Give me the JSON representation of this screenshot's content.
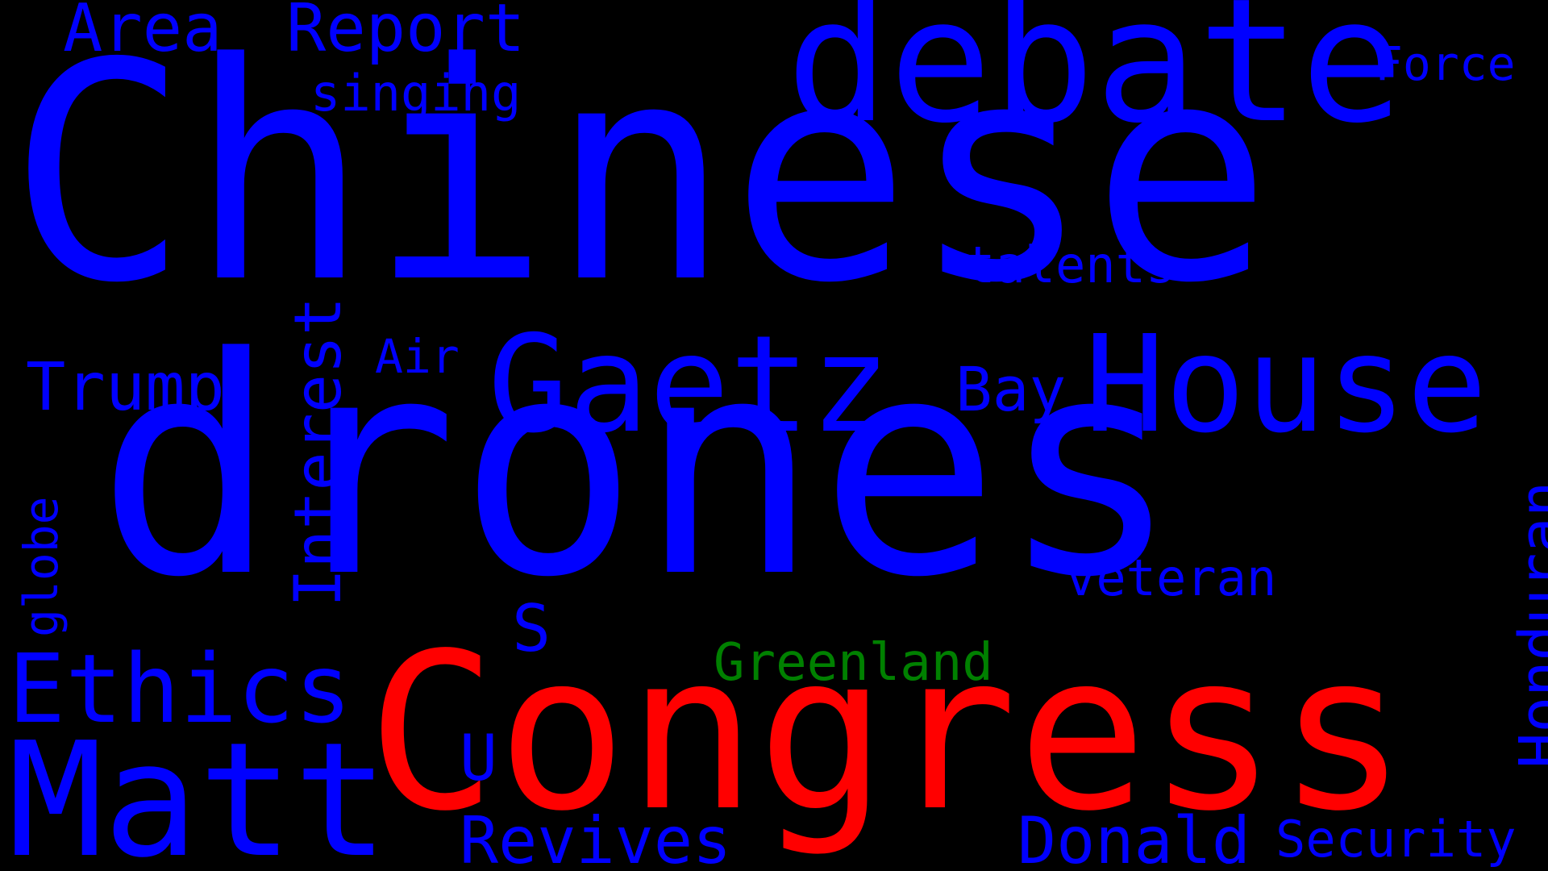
{
  "colors": {
    "background": "#000000",
    "primary": "#0000ff",
    "emphasis": "#ff0000",
    "accent": "#008000"
  },
  "words": [
    {
      "text": "Chinese",
      "color": "#0000ff"
    },
    {
      "text": "drones",
      "color": "#0000ff"
    },
    {
      "text": "Congress",
      "color": "#ff0000"
    },
    {
      "text": "debate",
      "color": "#0000ff"
    },
    {
      "text": "House",
      "color": "#0000ff"
    },
    {
      "text": "Gaetz",
      "color": "#0000ff"
    },
    {
      "text": "Matt",
      "color": "#0000ff"
    },
    {
      "text": "Ethics",
      "color": "#0000ff"
    },
    {
      "text": "Area",
      "color": "#0000ff"
    },
    {
      "text": "Report",
      "color": "#0000ff"
    },
    {
      "text": "singing",
      "color": "#0000ff"
    },
    {
      "text": "Force",
      "color": "#0000ff"
    },
    {
      "text": "talents",
      "color": "#0000ff"
    },
    {
      "text": "Trump",
      "color": "#0000ff"
    },
    {
      "text": "Air",
      "color": "#0000ff"
    },
    {
      "text": "Interest",
      "color": "#0000ff"
    },
    {
      "text": "Bay",
      "color": "#0000ff"
    },
    {
      "text": "Honduran",
      "color": "#0000ff"
    },
    {
      "text": "globe",
      "color": "#0000ff"
    },
    {
      "text": "veteran",
      "color": "#0000ff"
    },
    {
      "text": "S",
      "color": "#0000ff"
    },
    {
      "text": "Greenland",
      "color": "#008000"
    },
    {
      "text": "U",
      "color": "#0000ff"
    },
    {
      "text": "Revives",
      "color": "#0000ff"
    },
    {
      "text": "Donald",
      "color": "#0000ff"
    },
    {
      "text": "Security",
      "color": "#0000ff"
    }
  ]
}
